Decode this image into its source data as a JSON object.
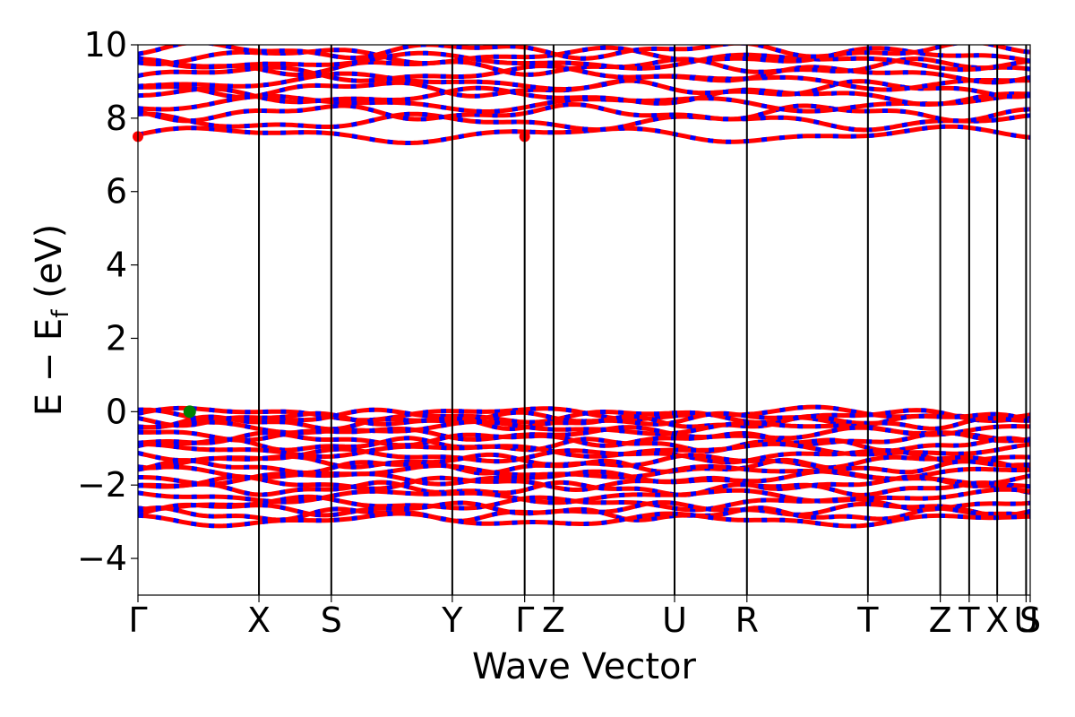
{
  "chart_data": {
    "type": "line",
    "xlabel": "Wave Vector",
    "ylabel_main": "E − E",
    "ylabel_sub": "f",
    "ylabel_unit": " (eV)",
    "ylim": [
      -5,
      10
    ],
    "yticks": [
      -4,
      -2,
      0,
      2,
      4,
      6,
      8,
      10
    ],
    "ytick_labels": [
      "−4",
      "−2",
      "0",
      "2",
      "4",
      "6",
      "8",
      "10"
    ],
    "kpath": [
      "Γ",
      "X",
      "S",
      "Y",
      "Γ",
      "Z",
      "U",
      "R",
      "T",
      "Z",
      "T",
      "X",
      "U",
      "S"
    ],
    "kpath_positions": [
      0,
      0.1356,
      0.2167,
      0.3523,
      0.4334,
      0.4658,
      0.6014,
      0.6825,
      0.8181,
      0.8992,
      0.9316,
      0.963,
      0.9954,
      1.0
    ],
    "valence_bands_eV": [
      -0.05,
      -0.12,
      -0.2,
      -0.3,
      -0.45,
      -0.6,
      -0.75,
      -0.9,
      -1.05,
      -1.2,
      -1.35,
      -1.5,
      -1.65,
      -1.8,
      -1.95,
      -2.1,
      -2.3,
      -2.5,
      -2.65,
      -2.8,
      -2.95
    ],
    "conduction_bands_eV": [
      7.55,
      7.9,
      8.15,
      8.4,
      8.6,
      8.8,
      9.0,
      9.2,
      9.4,
      9.55,
      9.7,
      9.85
    ],
    "vbm": {
      "k": 0.058,
      "E": 0.0,
      "color": "#008000"
    },
    "cbm": [
      {
        "k": 0.0,
        "E": 7.5,
        "color": "#ff0000"
      },
      {
        "k": 0.4334,
        "E": 7.5,
        "color": "#ff0000"
      }
    ],
    "colors": {
      "band_primary": "#ff0000",
      "band_secondary": "#0000ff",
      "vline": "#000000"
    }
  }
}
